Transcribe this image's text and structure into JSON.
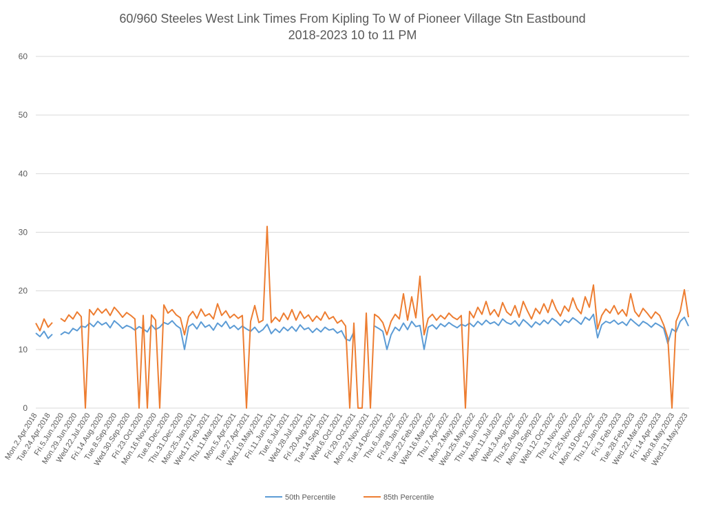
{
  "chart_data": {
    "type": "line",
    "title": "60/960 Steeles West Link Times From Kipling To W of Pioneer Village Stn Eastbound",
    "subtitle": "2018-2023 10 to 11 PM",
    "xlabel": "",
    "ylabel": "",
    "ylim": [
      0,
      60
    ],
    "yticks": [
      0,
      10,
      20,
      30,
      40,
      50,
      60
    ],
    "grid": true,
    "legend": "bottom",
    "x_tick_labels": [
      "Mon.2.Apr.2018",
      "Tue.24.Apr.2018",
      "Fri.5.Jun.2020",
      "Mon.29.Jun.2020",
      "Wed.22.Jul.2020",
      "Fri.14.Aug.2020",
      "Tue.8.Sep.2020",
      "Wed.30.Sep.2020",
      "Fri.23.Oct.2020",
      "Mon.16.Nov.2020",
      "Tue.8.Dec.2020",
      "Thu.31.Dec.2020",
      "Mon.25.Jan.2021",
      "Wed.17.Feb.2021",
      "Thu.11.Mar.2021",
      "Mon.5.Apr.2021",
      "Tue.27.Apr.2021",
      "Wed.19.May.2021",
      "Fri.11.Jun.2021",
      "Tue.6.Jul.2021",
      "Wed.28.Jul.2021",
      "Fri.20.Aug.2021",
      "Tue.14.Sep.2021",
      "Wed.6.Oct.2021",
      "Fri.29.Oct.2021",
      "Mon.22.Nov.2021",
      "Tue.14.Dec.2021",
      "Thu.6.Jan.2022",
      "Fri.28.Jan.2022",
      "Tue.22.Feb.2022",
      "Wed.16.Mar.2022",
      "Thu.7.Apr.2022",
      "Mon.2.May.2022",
      "Wed.25.May.2022",
      "Thu.16.Jun.2022",
      "Mon.11.Jul.2022",
      "Wed.3.Aug.2022",
      "Thu.25.Aug.2022",
      "Mon.19.Sep.2022",
      "Wed.12.Oct.2022",
      "Thu.3.Nov.2022",
      "Fri.25.Nov.2022",
      "Mon.19.Dec.2022",
      "Thu.12.Jan.2023",
      "Fri.3.Feb.2023",
      "Tue.28.Feb.2023",
      "Wed.22.Mar.2023",
      "Fri.14.Apr.2023",
      "Mon.8.May.2023",
      "Wed.31.May.2023"
    ],
    "series": [
      {
        "name": "50th Percentile",
        "color": "#5B9BD5",
        "values": [
          12.8,
          12.2,
          13.1,
          11.9,
          12.6,
          null,
          12.5,
          13.0,
          12.7,
          13.6,
          13.2,
          14.0,
          13.8,
          14.5,
          13.9,
          14.8,
          14.2,
          14.6,
          13.7,
          14.9,
          14.3,
          13.6,
          14.1,
          13.8,
          13.3,
          13.9,
          13.5,
          13.0,
          14.2,
          13.4,
          13.8,
          14.6,
          14.3,
          14.9,
          14.1,
          13.6,
          10.0,
          13.9,
          14.4,
          13.5,
          14.7,
          13.8,
          14.2,
          13.3,
          14.5,
          13.9,
          14.8,
          13.6,
          14.1,
          13.4,
          14.0,
          13.5,
          13.1,
          13.8,
          12.9,
          13.4,
          14.3,
          12.7,
          13.5,
          12.9,
          13.8,
          13.2,
          13.9,
          13.1,
          14.2,
          13.4,
          13.7,
          12.9,
          13.6,
          13.0,
          13.8,
          13.3,
          13.5,
          12.8,
          13.2,
          11.8,
          11.5,
          13.0,
          null,
          null,
          null,
          null,
          14.0,
          13.6,
          13.1,
          10.0,
          12.5,
          13.8,
          13.2,
          14.5,
          13.4,
          14.8,
          13.9,
          14.1,
          10.0,
          13.8,
          14.2,
          13.5,
          14.4,
          13.9,
          14.6,
          14.1,
          13.7,
          14.3,
          14.0,
          14.5,
          13.9,
          14.8,
          14.2,
          15.0,
          14.4,
          14.7,
          14.1,
          15.2,
          14.6,
          14.3,
          14.9,
          14.0,
          15.1,
          14.5,
          13.8,
          14.7,
          14.2,
          15.0,
          14.4,
          15.3,
          14.8,
          14.1,
          15.0,
          14.6,
          15.4,
          14.9,
          14.3,
          15.5,
          15.0,
          16.0,
          12.0,
          14.2,
          14.8,
          14.5,
          15.0,
          14.3,
          14.7,
          14.1,
          15.2,
          14.6,
          14.0,
          14.8,
          14.4,
          13.8,
          14.5,
          14.1,
          13.6,
          11.0,
          13.5,
          13.0,
          14.8,
          15.5,
          14.0
        ]
      },
      {
        "name": "85th Percentile",
        "color": "#ED7D31",
        "values": [
          14.5,
          13.2,
          15.2,
          13.8,
          14.6,
          null,
          15.3,
          14.8,
          15.9,
          15.2,
          16.4,
          15.6,
          0,
          16.8,
          15.9,
          17.0,
          16.2,
          16.9,
          15.8,
          17.2,
          16.4,
          15.5,
          16.3,
          15.8,
          15.2,
          0,
          15.8,
          0,
          15.9,
          15.0,
          0,
          17.6,
          16.2,
          16.8,
          15.9,
          15.4,
          12.5,
          15.6,
          16.5,
          15.3,
          16.9,
          15.7,
          16.1,
          15.2,
          17.8,
          15.8,
          16.6,
          15.4,
          16.0,
          15.3,
          15.8,
          0,
          14.8,
          17.5,
          14.6,
          15.0,
          31.0,
          14.6,
          15.5,
          14.8,
          16.2,
          15.1,
          16.8,
          15.0,
          16.5,
          15.3,
          15.9,
          14.8,
          15.7,
          15.0,
          16.4,
          15.2,
          15.6,
          14.5,
          15.0,
          14.0,
          0,
          14.5,
          0,
          0,
          16.2,
          0,
          16.0,
          15.5,
          14.6,
          12.5,
          14.8,
          16.0,
          15.2,
          19.5,
          15.0,
          19.0,
          15.4,
          22.5,
          12.5,
          15.3,
          16.0,
          15.0,
          15.8,
          15.2,
          16.2,
          15.5,
          15.1,
          15.8,
          0,
          16.5,
          15.4,
          17.2,
          16.0,
          18.2,
          15.9,
          16.8,
          15.6,
          18.0,
          16.4,
          15.8,
          17.5,
          15.5,
          18.2,
          16.6,
          15.2,
          17.0,
          16.1,
          17.8,
          16.3,
          18.5,
          16.8,
          15.7,
          17.4,
          16.5,
          18.8,
          17.0,
          16.1,
          19.0,
          17.2,
          21.0,
          13.5,
          15.8,
          16.9,
          16.2,
          17.5,
          16.0,
          16.8,
          15.7,
          19.5,
          16.5,
          15.6,
          17.0,
          16.2,
          15.3,
          16.4,
          15.8,
          14.2,
          12.0,
          0,
          14.8,
          16.5,
          20.2,
          15.5
        ]
      }
    ]
  }
}
